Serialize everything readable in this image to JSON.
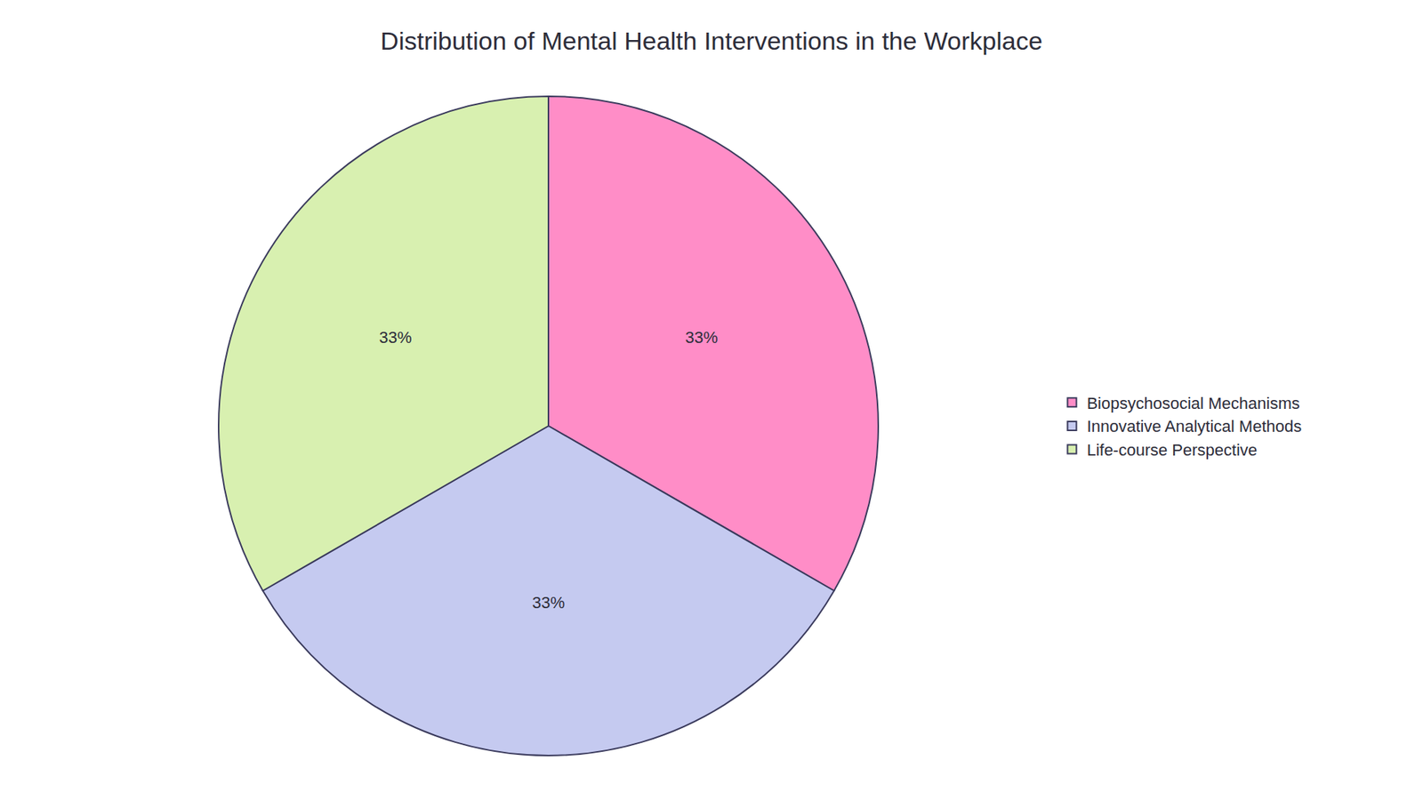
{
  "chart_data": {
    "type": "pie",
    "title": "Distribution of Mental Health Interventions in the Workplace",
    "categories": [
      "Biopsychosocial Mechanisms",
      "Innovative Analytical Methods",
      "Life-course Perspective"
    ],
    "values": [
      33,
      33,
      33
    ],
    "value_labels": [
      "33%",
      "33%",
      "33%"
    ],
    "data_labels": true,
    "colors": [
      "#FF8DC7",
      "#C5CAF0",
      "#D8F0B0"
    ],
    "legend": "right"
  }
}
